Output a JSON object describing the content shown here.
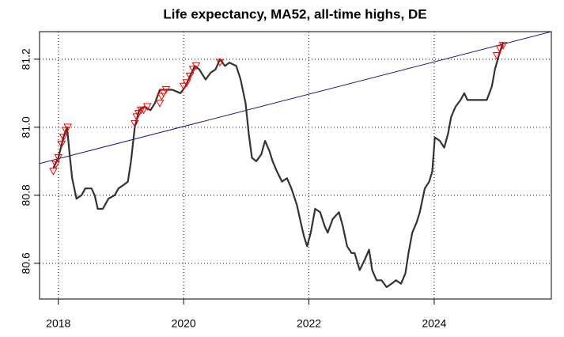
{
  "chart_data": {
    "type": "line",
    "title": "Life expectancy, MA52, all-time highs, DE",
    "x": [
      2017.92,
      2018.0,
      2018.08,
      2018.14,
      2018.18,
      2018.22,
      2018.29,
      2018.37,
      2018.43,
      2018.53,
      2018.58,
      2018.63,
      2018.71,
      2018.8,
      2018.9,
      2018.96,
      2019.04,
      2019.11,
      2019.16,
      2019.22,
      2019.29,
      2019.37,
      2019.47,
      2019.54,
      2019.62,
      2019.72,
      2019.82,
      2019.95,
      2020.03,
      2020.1,
      2020.18,
      2020.25,
      2020.35,
      2020.43,
      2020.51,
      2020.58,
      2020.66,
      2020.73,
      2020.84,
      2020.91,
      2020.99,
      2021.04,
      2021.09,
      2021.16,
      2021.24,
      2021.3,
      2021.37,
      2021.42,
      2021.49,
      2021.57,
      2021.65,
      2021.72,
      2021.81,
      2021.87,
      2021.92,
      2021.97,
      2022.03,
      2022.1,
      2022.18,
      2022.25,
      2022.3,
      2022.38,
      2022.48,
      2022.54,
      2022.61,
      2022.68,
      2022.73,
      2022.81,
      2022.89,
      2022.96,
      2023.01,
      2023.08,
      2023.16,
      2023.24,
      2023.32,
      2023.39,
      2023.47,
      2023.54,
      2023.59,
      2023.65,
      2023.72,
      2023.77,
      2023.85,
      2023.92,
      2023.97,
      2024.01,
      2024.09,
      2024.16,
      2024.22,
      2024.27,
      2024.34,
      2024.42,
      2024.48,
      2024.53,
      2024.61,
      2024.68,
      2024.76,
      2024.84,
      2024.92,
      2024.97,
      2025.03,
      2025.1
    ],
    "values": [
      80.88,
      80.91,
      80.97,
      81.0,
      80.92,
      80.85,
      80.79,
      80.8,
      80.82,
      80.82,
      80.8,
      80.76,
      80.76,
      80.79,
      80.8,
      80.82,
      80.83,
      80.84,
      80.9,
      81.0,
      81.05,
      81.06,
      81.05,
      81.07,
      81.11,
      81.11,
      81.11,
      81.1,
      81.12,
      81.15,
      81.18,
      81.17,
      81.14,
      81.16,
      81.17,
      81.2,
      81.18,
      81.19,
      81.18,
      81.14,
      81.07,
      80.98,
      80.91,
      80.9,
      80.92,
      80.96,
      80.93,
      80.9,
      80.87,
      80.84,
      80.85,
      80.82,
      80.77,
      80.72,
      80.68,
      80.65,
      80.69,
      80.76,
      80.75,
      80.71,
      80.69,
      80.73,
      80.75,
      80.71,
      80.65,
      80.63,
      80.63,
      80.58,
      80.61,
      80.64,
      80.58,
      80.55,
      80.55,
      80.53,
      80.54,
      80.55,
      80.54,
      80.57,
      80.63,
      80.69,
      80.72,
      80.75,
      80.82,
      80.84,
      80.87,
      80.97,
      80.96,
      80.94,
      80.98,
      81.03,
      81.06,
      81.08,
      81.1,
      81.08,
      81.08,
      81.08,
      81.08,
      81.08,
      81.12,
      81.17,
      81.21,
      81.25
    ],
    "color": "#333333",
    "highs": {
      "x": [
        2017.92,
        2017.96,
        2018.0,
        2018.05,
        2018.08,
        2018.12,
        2018.15,
        2019.22,
        2019.25,
        2019.28,
        2019.32,
        2019.36,
        2019.42,
        2019.62,
        2019.65,
        2019.68,
        2019.72,
        2020.0,
        2020.05,
        2020.1,
        2020.15,
        2020.2,
        2020.58,
        2025.0,
        2025.05,
        2025.1
      ],
      "values": [
        80.87,
        80.89,
        80.91,
        80.95,
        80.97,
        80.99,
        81.0,
        81.01,
        81.03,
        81.04,
        81.05,
        81.05,
        81.06,
        81.07,
        81.09,
        81.1,
        81.11,
        81.12,
        81.13,
        81.15,
        81.17,
        81.18,
        81.19,
        81.21,
        81.23,
        81.24
      ],
      "color": "#ff0000"
    },
    "trend": {
      "x": [
        2017.7,
        2025.87
      ],
      "values": [
        80.893,
        81.281
      ],
      "color": "#1a1a80"
    },
    "xlim": [
      2017.7,
      2025.87
    ],
    "xticks": [
      2018,
      2020,
      2022,
      2024
    ],
    "ylim": [
      80.495,
      81.281
    ],
    "yticks": [
      80.6,
      80.8,
      {
        "value": 81,
        "label": "81.0"
      },
      81.2
    ],
    "grid": true
  }
}
